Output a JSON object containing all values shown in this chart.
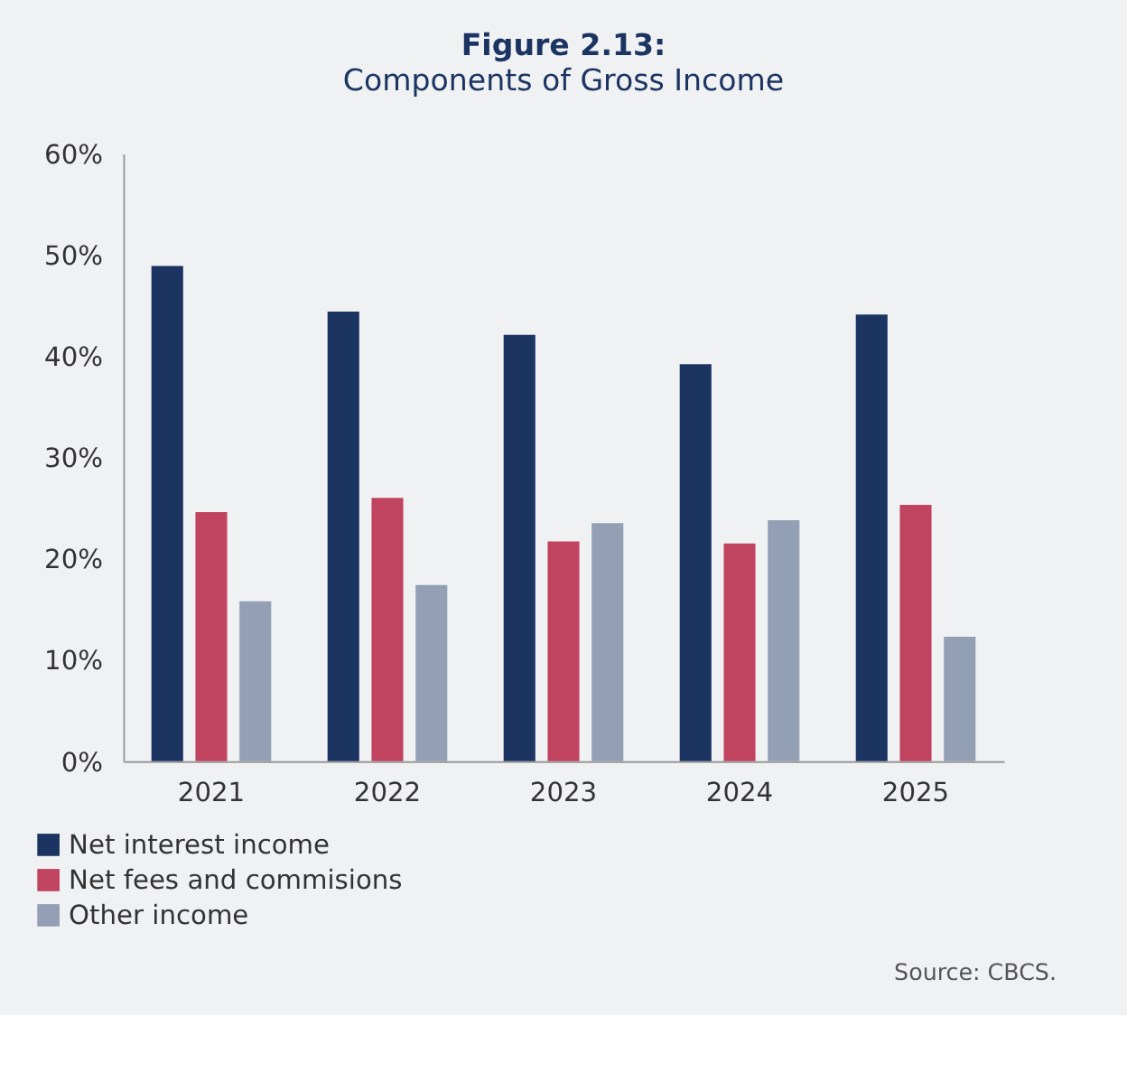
{
  "chart_data": {
    "type": "bar",
    "title": "Figure 2.13:",
    "subtitle": "Components of Gross Income",
    "categories": [
      "2021",
      "2022",
      "2023",
      "2024",
      "2025"
    ],
    "series": [
      {
        "name": "Net interest income",
        "color": "#1b3461",
        "values": [
          48.9,
          44.4,
          42.1,
          39.2,
          44.1
        ]
      },
      {
        "name": "Net fees and commisions",
        "color": "#c0435f",
        "values": [
          24.6,
          26.0,
          21.7,
          21.5,
          25.3
        ]
      },
      {
        "name": "Other income",
        "color": "#939fb5",
        "values": [
          15.8,
          17.4,
          23.5,
          23.8,
          12.3
        ]
      }
    ],
    "ylim": [
      0,
      60
    ],
    "yticks": [
      {
        "value": 0,
        "label": "0%"
      },
      {
        "value": 10,
        "label": "10%"
      },
      {
        "value": 20,
        "label": "20%"
      },
      {
        "value": 30,
        "label": "30%"
      },
      {
        "value": 40,
        "label": "40%"
      },
      {
        "value": 50,
        "label": "50%"
      },
      {
        "value": 60,
        "label": "60%"
      }
    ],
    "grid": false,
    "legend": "bottom left",
    "annotations": [
      "Source: CBCS."
    ]
  }
}
